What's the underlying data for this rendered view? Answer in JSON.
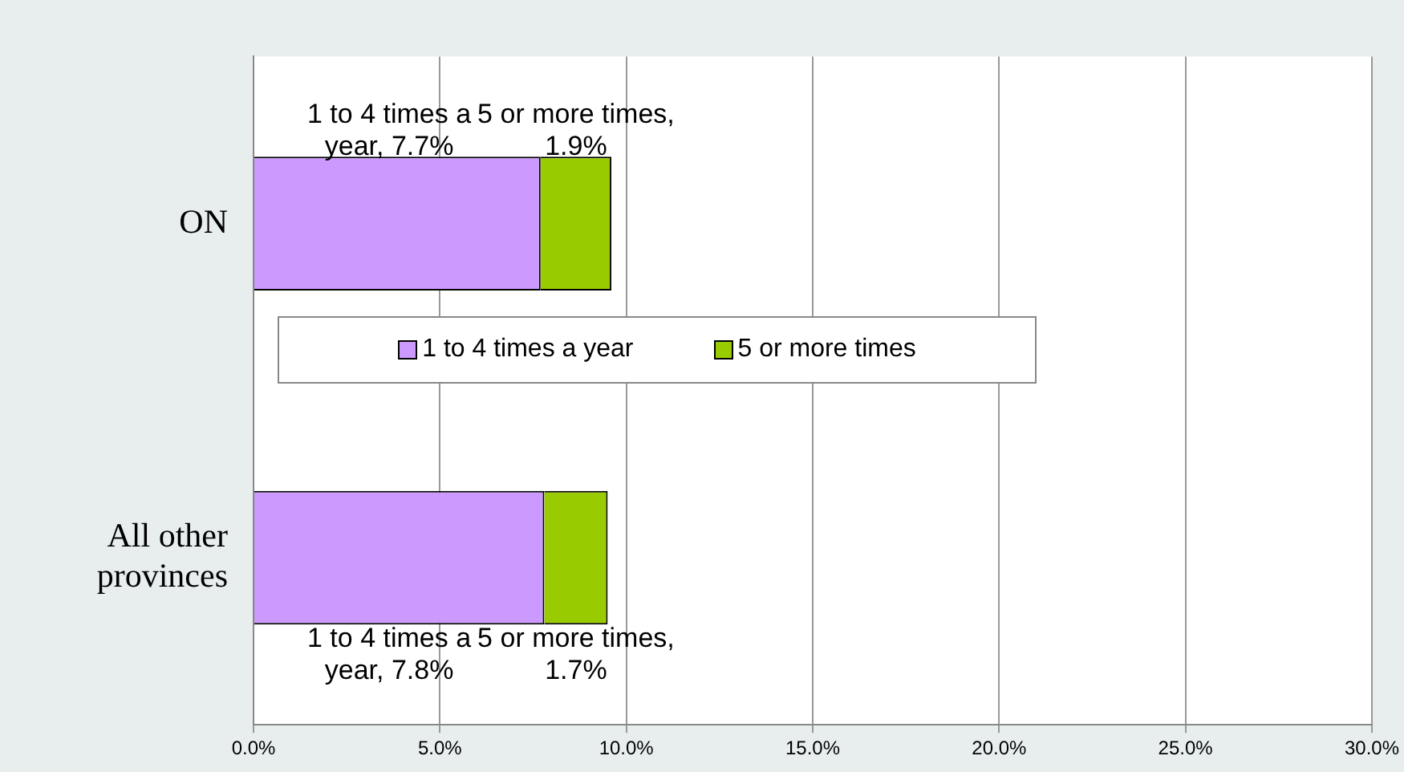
{
  "chart_data": {
    "type": "bar",
    "orientation": "horizontal",
    "stacked": true,
    "categories": [
      "ON",
      "All other provinces"
    ],
    "series": [
      {
        "name": "1 to 4 times a year",
        "color": "#cc99ff",
        "values": [
          7.7,
          7.8
        ]
      },
      {
        "name": "5 or more times",
        "color": "#99cc00",
        "values": [
          1.9,
          1.7
        ]
      }
    ],
    "annotations": [
      "1 to 4 times a year, 7.7%",
      "5 or more times, 1.9%",
      "1 to 4 times a year, 7.8%",
      "5 or more times, 1.7%"
    ],
    "xlim": [
      0,
      30
    ],
    "xticks": [
      {
        "value": 0,
        "label": "0.0%"
      },
      {
        "value": 5,
        "label": "5.0%"
      },
      {
        "value": 10,
        "label": "10.0%"
      },
      {
        "value": 15,
        "label": "15.0%"
      },
      {
        "value": 20,
        "label": "20.0%"
      },
      {
        "value": 25,
        "label": "25.0%"
      },
      {
        "value": 30,
        "label": "30.0%"
      }
    ],
    "grid": "x",
    "legend": "center"
  }
}
